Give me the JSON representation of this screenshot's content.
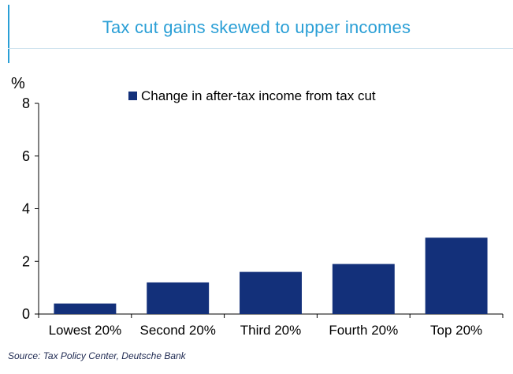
{
  "title": "Tax cut gains skewed to upper incomes",
  "source": "Source: Tax Policy Center, Deutsche Bank",
  "colors": {
    "bar": "#13307a",
    "title": "#2a9fd6",
    "axis": "#000000"
  },
  "chart_data": {
    "type": "bar",
    "categories": [
      "Lowest 20%",
      "Second 20%",
      "Third 20%",
      "Fourth 20%",
      "Top 20%"
    ],
    "series": [
      {
        "name": "Change in after-tax income from tax cut",
        "values": [
          0.4,
          1.2,
          1.6,
          1.9,
          2.9
        ]
      }
    ],
    "y_unit": "%",
    "ylim": [
      0,
      8
    ],
    "yticks": [
      0,
      2,
      4,
      6,
      8
    ],
    "legend_position": "top",
    "grid": false
  }
}
